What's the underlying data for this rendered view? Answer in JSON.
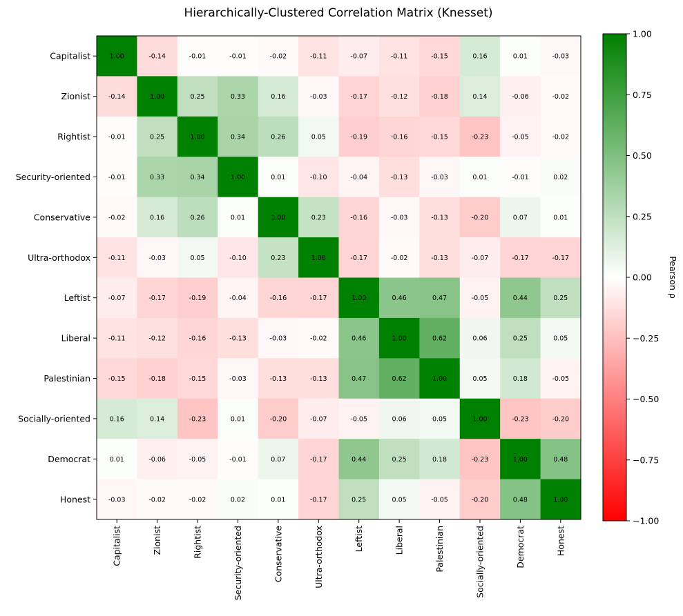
{
  "chart_data": {
    "type": "heatmap",
    "title": "Hierarchically-Clustered Correlation Matrix (Knesset)",
    "labels": [
      "Capitalist",
      "Zionist",
      "Rightist",
      "Security-oriented",
      "Conservative",
      "Ultra-orthodox",
      "Leftist",
      "Liberal",
      "Palestinian",
      "Socially-oriented",
      "Democrat",
      "Honest"
    ],
    "matrix": [
      [
        1.0,
        -0.14,
        -0.01,
        -0.01,
        -0.02,
        -0.11,
        -0.07,
        -0.11,
        -0.15,
        0.16,
        0.01,
        -0.03
      ],
      [
        -0.14,
        1.0,
        0.25,
        0.33,
        0.16,
        -0.03,
        -0.17,
        -0.12,
        -0.18,
        0.14,
        -0.06,
        -0.02
      ],
      [
        -0.01,
        0.25,
        1.0,
        0.34,
        0.26,
        0.05,
        -0.19,
        -0.16,
        -0.15,
        -0.23,
        -0.05,
        -0.02
      ],
      [
        -0.01,
        0.33,
        0.34,
        1.0,
        0.01,
        -0.1,
        -0.04,
        -0.13,
        -0.03,
        0.01,
        -0.01,
        0.02
      ],
      [
        -0.02,
        0.16,
        0.26,
        0.01,
        1.0,
        0.23,
        -0.16,
        -0.03,
        -0.13,
        -0.2,
        0.07,
        0.01
      ],
      [
        -0.11,
        -0.03,
        0.05,
        -0.1,
        0.23,
        1.0,
        -0.17,
        -0.02,
        -0.13,
        -0.07,
        -0.17,
        -0.17
      ],
      [
        -0.07,
        -0.17,
        -0.19,
        -0.04,
        -0.16,
        -0.17,
        1.0,
        0.46,
        0.47,
        -0.05,
        0.44,
        0.25
      ],
      [
        -0.11,
        -0.12,
        -0.16,
        -0.13,
        -0.03,
        -0.02,
        0.46,
        1.0,
        0.62,
        0.06,
        0.25,
        0.05
      ],
      [
        -0.15,
        -0.18,
        -0.15,
        -0.03,
        -0.13,
        -0.13,
        0.47,
        0.62,
        1.0,
        0.05,
        0.18,
        -0.05
      ],
      [
        0.16,
        0.14,
        -0.23,
        0.01,
        -0.2,
        -0.07,
        -0.05,
        0.06,
        0.05,
        1.0,
        -0.23,
        -0.2
      ],
      [
        0.01,
        -0.06,
        -0.05,
        -0.01,
        0.07,
        -0.17,
        0.44,
        0.25,
        0.18,
        -0.23,
        1.0,
        0.48
      ],
      [
        -0.03,
        -0.02,
        -0.02,
        0.02,
        0.01,
        -0.17,
        0.25,
        0.05,
        -0.05,
        -0.2,
        0.48,
        1.0
      ]
    ],
    "colorbar": {
      "label": "Pearson ρ",
      "range": [
        -1.0,
        1.0
      ],
      "ticks": [
        1.0,
        0.75,
        0.5,
        0.25,
        0.0,
        -0.25,
        -0.5,
        -0.75,
        -1.0
      ],
      "tick_labels": [
        "1.00",
        "0.75",
        "0.50",
        "0.25",
        "0.00",
        "−0.25",
        "−0.50",
        "−0.75",
        "−1.00"
      ]
    },
    "colors": {
      "negative": "#ff0000",
      "zero": "#ffffff",
      "positive": "#008000"
    }
  }
}
